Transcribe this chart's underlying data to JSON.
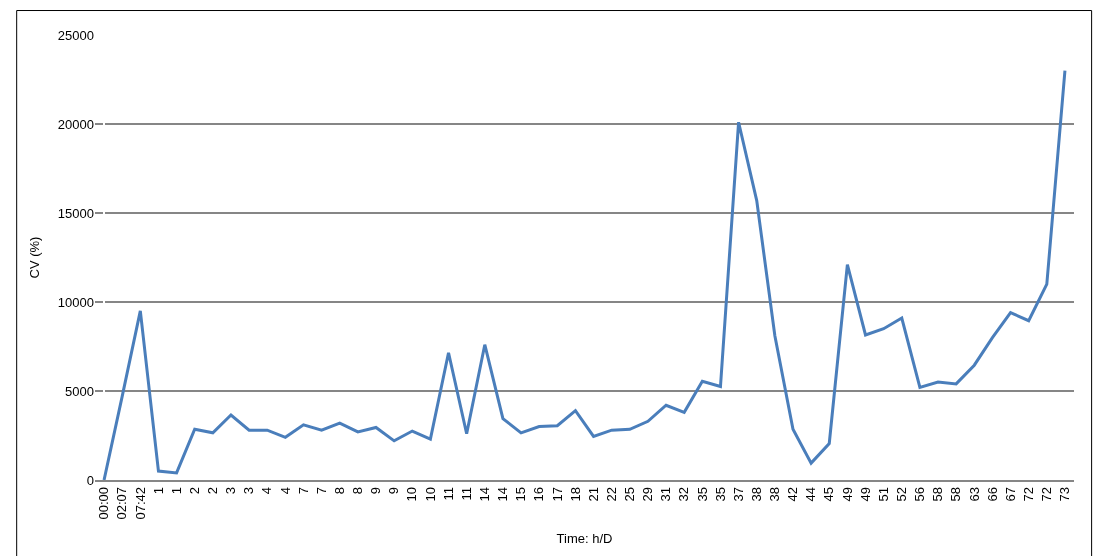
{
  "chart_data": {
    "type": "line",
    "xlabel": "Time: h/D",
    "ylabel": "CV (%)",
    "categories": [
      "00:00",
      "02:07",
      "07:42",
      "1",
      "1",
      "2",
      "2",
      "3",
      "3",
      "4",
      "4",
      "7",
      "7",
      "8",
      "8",
      "9",
      "9",
      "10",
      "10",
      "11",
      "11",
      "14",
      "14",
      "15",
      "16",
      "17",
      "18",
      "21",
      "22",
      "25",
      "29",
      "31",
      "32",
      "35",
      "35",
      "37",
      "38",
      "38",
      "42",
      "44",
      "45",
      "49",
      "49",
      "51",
      "52",
      "56",
      "58",
      "58",
      "63",
      "66",
      "67",
      "72",
      "72",
      "73"
    ],
    "series": [
      {
        "color": "#4a7ebb",
        "values": [
          0,
          4700,
          9500,
          500,
          400,
          2850,
          2650,
          3650,
          2800,
          2800,
          2400,
          3100,
          2800,
          3200,
          2700,
          2950,
          2200,
          2750,
          2300,
          7150,
          2600,
          7600,
          3450,
          2650,
          3000,
          3050,
          3900,
          2450,
          2800,
          2850,
          3300,
          4200,
          3800,
          5550,
          5250,
          20100,
          15700,
          8100,
          2850,
          950,
          2050,
          12100,
          8150,
          8500,
          9100,
          5200,
          5500,
          5400,
          6450,
          8000,
          9400,
          8950,
          11000,
          23000
        ]
      }
    ],
    "ylim": [
      0,
      25000
    ],
    "yticks": [
      0,
      5000,
      10000,
      15000,
      20000,
      25000
    ],
    "grid": "y",
    "legend": false,
    "marker": "none",
    "line_style": "solid"
  }
}
